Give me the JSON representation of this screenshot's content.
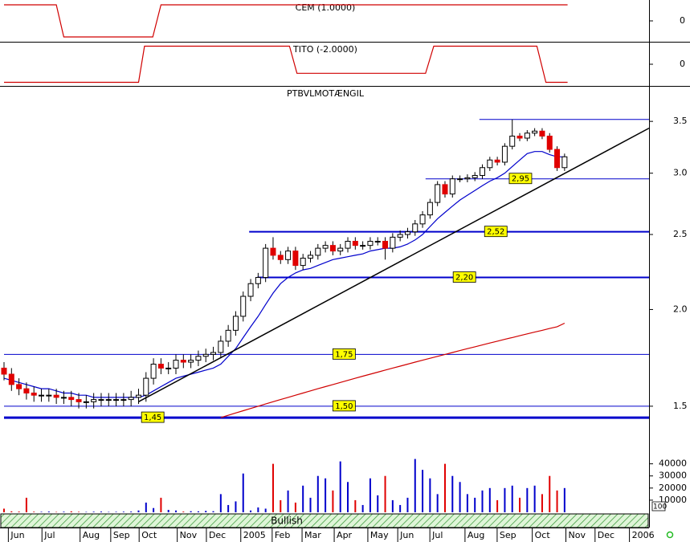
{
  "chart_data": [
    {
      "type": "step",
      "title": "CEM (1.0000)",
      "color": "#d00000",
      "x": [
        0,
        7,
        8,
        19.9,
        21,
        75.4
      ],
      "values": [
        1,
        1,
        -1,
        -1,
        1,
        1
      ],
      "ylim": [
        -1.3,
        1.3
      ],
      "yticks": [
        0
      ]
    },
    {
      "type": "step",
      "title": "TITO (-2.0000)",
      "color": "#d00000",
      "x": [
        0,
        18,
        18.8,
        38.2,
        39.2,
        56.4,
        57.5,
        71.3,
        72.5,
        75.4
      ],
      "values": [
        -2,
        -2,
        2,
        2,
        -1,
        -1,
        2,
        2,
        -2,
        -2
      ],
      "ylim": [
        -2.4,
        2.4
      ],
      "yticks": [
        0
      ]
    },
    {
      "type": "candlestick",
      "title": "PTBVLMOTÆNGIL",
      "log_scale": true,
      "up_color": "#ffffff",
      "down_color": "#e00000",
      "x": [
        0,
        1,
        2,
        3,
        4,
        5,
        6,
        7,
        8,
        9,
        10,
        11,
        12,
        13,
        14,
        15,
        16,
        17,
        18,
        19,
        20,
        21,
        22,
        23,
        24,
        25,
        26,
        27,
        28,
        29,
        30,
        31,
        32,
        33,
        34,
        35,
        36,
        37,
        38,
        39,
        40,
        41,
        42,
        43,
        44,
        45,
        46,
        47,
        48,
        49,
        50,
        51,
        52,
        53,
        54,
        55,
        56,
        57,
        58,
        59,
        60,
        61,
        62,
        63,
        64,
        65,
        66,
        67,
        68,
        69,
        70,
        71,
        72,
        73,
        74,
        75
      ],
      "open": [
        1.68,
        1.65,
        1.6,
        1.58,
        1.56,
        1.55,
        1.55,
        1.55,
        1.54,
        1.54,
        1.53,
        1.52,
        1.52,
        1.53,
        1.53,
        1.53,
        1.53,
        1.53,
        1.54,
        1.55,
        1.63,
        1.7,
        1.68,
        1.68,
        1.72,
        1.71,
        1.72,
        1.74,
        1.75,
        1.76,
        1.82,
        1.88,
        1.96,
        2.08,
        2.16,
        2.2,
        2.4,
        2.35,
        2.32,
        2.38,
        2.28,
        2.33,
        2.35,
        2.4,
        2.42,
        2.38,
        2.4,
        2.45,
        2.42,
        2.42,
        2.45,
        2.45,
        2.4,
        2.48,
        2.5,
        2.52,
        2.58,
        2.65,
        2.75,
        2.9,
        2.82,
        2.95,
        2.95,
        2.96,
        2.98,
        3.05,
        3.12,
        3.1,
        3.25,
        3.35,
        3.33,
        3.38,
        3.4,
        3.35,
        3.22,
        3.05
      ],
      "high": [
        1.71,
        1.68,
        1.63,
        1.61,
        1.59,
        1.58,
        1.58,
        1.58,
        1.57,
        1.57,
        1.56,
        1.55,
        1.56,
        1.56,
        1.56,
        1.56,
        1.56,
        1.57,
        1.58,
        1.66,
        1.73,
        1.73,
        1.71,
        1.75,
        1.75,
        1.75,
        1.77,
        1.78,
        1.79,
        1.85,
        1.91,
        1.99,
        2.11,
        2.19,
        2.23,
        2.43,
        2.48,
        2.38,
        2.41,
        2.41,
        2.36,
        2.38,
        2.43,
        2.45,
        2.45,
        2.43,
        2.48,
        2.48,
        2.45,
        2.48,
        2.48,
        2.48,
        2.51,
        2.53,
        2.55,
        2.61,
        2.68,
        2.78,
        2.93,
        2.93,
        2.98,
        2.98,
        2.99,
        3.01,
        3.08,
        3.15,
        3.15,
        3.28,
        3.52,
        3.38,
        3.41,
        3.43,
        3.43,
        3.38,
        3.25,
        3.18
      ],
      "low": [
        1.62,
        1.57,
        1.55,
        1.53,
        1.52,
        1.52,
        1.52,
        1.51,
        1.51,
        1.5,
        1.49,
        1.49,
        1.49,
        1.5,
        1.5,
        1.5,
        1.5,
        1.5,
        1.51,
        1.52,
        1.6,
        1.65,
        1.65,
        1.65,
        1.68,
        1.68,
        1.69,
        1.71,
        1.72,
        1.73,
        1.79,
        1.85,
        1.93,
        2.05,
        2.13,
        2.17,
        2.32,
        2.29,
        2.29,
        2.25,
        2.25,
        2.3,
        2.32,
        2.37,
        2.35,
        2.35,
        2.37,
        2.39,
        2.39,
        2.39,
        2.42,
        2.32,
        2.37,
        2.45,
        2.47,
        2.49,
        2.55,
        2.62,
        2.72,
        2.79,
        2.79,
        2.92,
        2.92,
        2.93,
        2.95,
        3.02,
        3.07,
        3.07,
        3.22,
        3.3,
        3.3,
        3.35,
        3.32,
        3.19,
        3.02,
        3.02
      ],
      "close": [
        1.65,
        1.6,
        1.58,
        1.56,
        1.55,
        1.55,
        1.55,
        1.54,
        1.54,
        1.53,
        1.52,
        1.52,
        1.53,
        1.53,
        1.53,
        1.53,
        1.53,
        1.54,
        1.55,
        1.63,
        1.7,
        1.68,
        1.68,
        1.72,
        1.71,
        1.72,
        1.74,
        1.75,
        1.76,
        1.82,
        1.88,
        1.96,
        2.08,
        2.16,
        2.2,
        2.4,
        2.35,
        2.32,
        2.38,
        2.28,
        2.33,
        2.35,
        2.4,
        2.42,
        2.38,
        2.4,
        2.45,
        2.42,
        2.42,
        2.45,
        2.45,
        2.4,
        2.48,
        2.5,
        2.52,
        2.58,
        2.65,
        2.75,
        2.9,
        2.82,
        2.95,
        2.95,
        2.96,
        2.98,
        3.05,
        3.12,
        3.1,
        3.25,
        3.35,
        3.33,
        3.38,
        3.4,
        3.35,
        3.22,
        3.05,
        3.15
      ],
      "lines": [
        {
          "color": "#0000cc",
          "values": [
            1.63,
            1.62,
            1.61,
            1.6,
            1.59,
            1.58,
            1.58,
            1.57,
            1.56,
            1.56,
            1.55,
            1.55,
            1.54,
            1.54,
            1.54,
            1.54,
            1.54,
            1.54,
            1.54,
            1.55,
            1.57,
            1.59,
            1.61,
            1.63,
            1.64,
            1.65,
            1.66,
            1.67,
            1.68,
            1.7,
            1.74,
            1.78,
            1.84,
            1.9,
            1.96,
            2.03,
            2.1,
            2.16,
            2.2,
            2.23,
            2.25,
            2.26,
            2.28,
            2.3,
            2.32,
            2.33,
            2.34,
            2.35,
            2.36,
            2.38,
            2.39,
            2.4,
            2.4,
            2.41,
            2.43,
            2.46,
            2.5,
            2.56,
            2.62,
            2.67,
            2.72,
            2.77,
            2.81,
            2.85,
            2.89,
            2.93,
            2.96,
            3.0,
            3.06,
            3.12,
            3.18,
            3.2,
            3.2,
            3.17,
            3.15,
            3.15
          ]
        },
        {
          "color": "#d00000",
          "values": [
            null,
            null,
            null,
            null,
            null,
            null,
            null,
            null,
            null,
            null,
            null,
            null,
            null,
            null,
            null,
            null,
            null,
            null,
            null,
            null,
            null,
            null,
            null,
            null,
            null,
            null,
            null,
            null,
            null,
            1.45,
            1.46,
            1.47,
            1.48,
            1.49,
            1.5,
            1.51,
            1.52,
            1.53,
            1.54,
            1.55,
            1.56,
            1.57,
            1.58,
            1.59,
            1.6,
            1.61,
            1.62,
            1.63,
            1.64,
            1.65,
            1.66,
            1.67,
            1.68,
            1.69,
            1.7,
            1.71,
            1.72,
            1.73,
            1.74,
            1.75,
            1.76,
            1.77,
            1.78,
            1.79,
            1.8,
            1.81,
            1.82,
            1.83,
            1.84,
            1.85,
            1.86,
            1.87,
            1.88,
            1.89,
            1.9,
            1.92
          ]
        }
      ],
      "trendline": {
        "color": "#000000",
        "x": [
          18,
          86.3
        ],
        "values": [
          1.52,
          3.43
        ]
      },
      "levels": [
        {
          "value": 1.45,
          "label": "1,45",
          "x_start": 0,
          "line_width": 3
        },
        {
          "value": 1.5,
          "label": "1,50",
          "x_start": 0,
          "line_width": 1
        },
        {
          "value": 1.75,
          "label": "1,75",
          "x_start": 0,
          "line_width": 1
        },
        {
          "value": 2.2,
          "label": "2,20",
          "x_start": 33.9,
          "line_width": 2
        },
        {
          "value": 2.52,
          "label": "2,52",
          "x_start": 32.8,
          "line_width": 2
        },
        {
          "value": 2.95,
          "label": "2,95",
          "x_start": 56.4,
          "line_width": 1
        },
        {
          "value": 3.52,
          "x_start": 63.6,
          "line_width": 1
        }
      ],
      "level_color": "#0000cc",
      "ylim": [
        1.35,
        3.88
      ],
      "yticks": [
        3.5,
        {
          "value": 3,
          "label": "3.0"
        },
        2.5,
        {
          "value": 2,
          "label": "2.0"
        },
        1.5
      ],
      "xlim": [
        0,
        86.3
      ],
      "xticks": [
        {
          "value": 0.9,
          "label": "Jun"
        },
        {
          "value": 5.4,
          "label": "Jul"
        },
        {
          "value": 10.5,
          "label": "Aug"
        },
        {
          "value": 14.6,
          "label": "Sep"
        },
        {
          "value": 18.4,
          "label": "Oct"
        },
        {
          "value": 23.5,
          "label": "Nov"
        },
        {
          "value": 27.4,
          "label": "Dec"
        },
        {
          "value": 32.0,
          "label": "2005"
        },
        {
          "value": 36.2,
          "label": "Feb"
        },
        {
          "value": 40.2,
          "label": "Mar"
        },
        {
          "value": 44.5,
          "label": "Apr"
        },
        {
          "value": 49.0,
          "label": "May"
        },
        {
          "value": 53.0,
          "label": "Jun"
        },
        {
          "value": 57.3,
          "label": "Jul"
        },
        {
          "value": 62.0,
          "label": "Aug"
        },
        {
          "value": 66.3,
          "label": "Sep"
        },
        {
          "value": 71.0,
          "label": "Oct"
        },
        {
          "value": 75.5,
          "label": "Nov"
        },
        {
          "value": 79.4,
          "label": "Dec"
        },
        {
          "value": 84.0,
          "label": "2006"
        }
      ]
    },
    {
      "type": "bar",
      "up_color": "#0000cc",
      "down_color": "#e00000",
      "x": [
        0,
        1,
        2,
        3,
        4,
        5,
        6,
        7,
        8,
        9,
        10,
        11,
        12,
        13,
        14,
        15,
        16,
        17,
        18,
        19,
        20,
        21,
        22,
        23,
        24,
        25,
        26,
        27,
        28,
        29,
        30,
        31,
        32,
        33,
        34,
        35,
        36,
        37,
        38,
        39,
        40,
        41,
        42,
        43,
        44,
        45,
        46,
        47,
        48,
        49,
        50,
        51,
        52,
        53,
        54,
        55,
        56,
        57,
        58,
        59,
        60,
        61,
        62,
        63,
        64,
        65,
        66,
        67,
        68,
        69,
        70,
        71,
        72,
        73,
        74,
        75
      ],
      "values": [
        3000,
        800,
        600,
        12000,
        500,
        400,
        600,
        300,
        500,
        800,
        400,
        300,
        500,
        600,
        300,
        400,
        500,
        600,
        1500,
        8000,
        3500,
        12000,
        2000,
        1500,
        600,
        900,
        800,
        1200,
        900,
        15000,
        6000,
        9000,
        32000,
        1500,
        4000,
        3000,
        40000,
        10000,
        18000,
        8000,
        22000,
        12000,
        30000,
        28000,
        18000,
        42000,
        25000,
        10000,
        6000,
        28000,
        14000,
        30000,
        10000,
        6000,
        12000,
        44000,
        35000,
        28000,
        15000,
        40000,
        30000,
        25000,
        15000,
        12000,
        18000,
        20000,
        10000,
        20000,
        22000,
        12000,
        20000,
        22000,
        15000,
        30000,
        18000,
        20000
      ],
      "ylim": [
        0,
        55000
      ],
      "yticks": [
        40000,
        30000,
        20000,
        10000
      ],
      "scale_label": "100"
    }
  ],
  "status_bar": "Bullish"
}
